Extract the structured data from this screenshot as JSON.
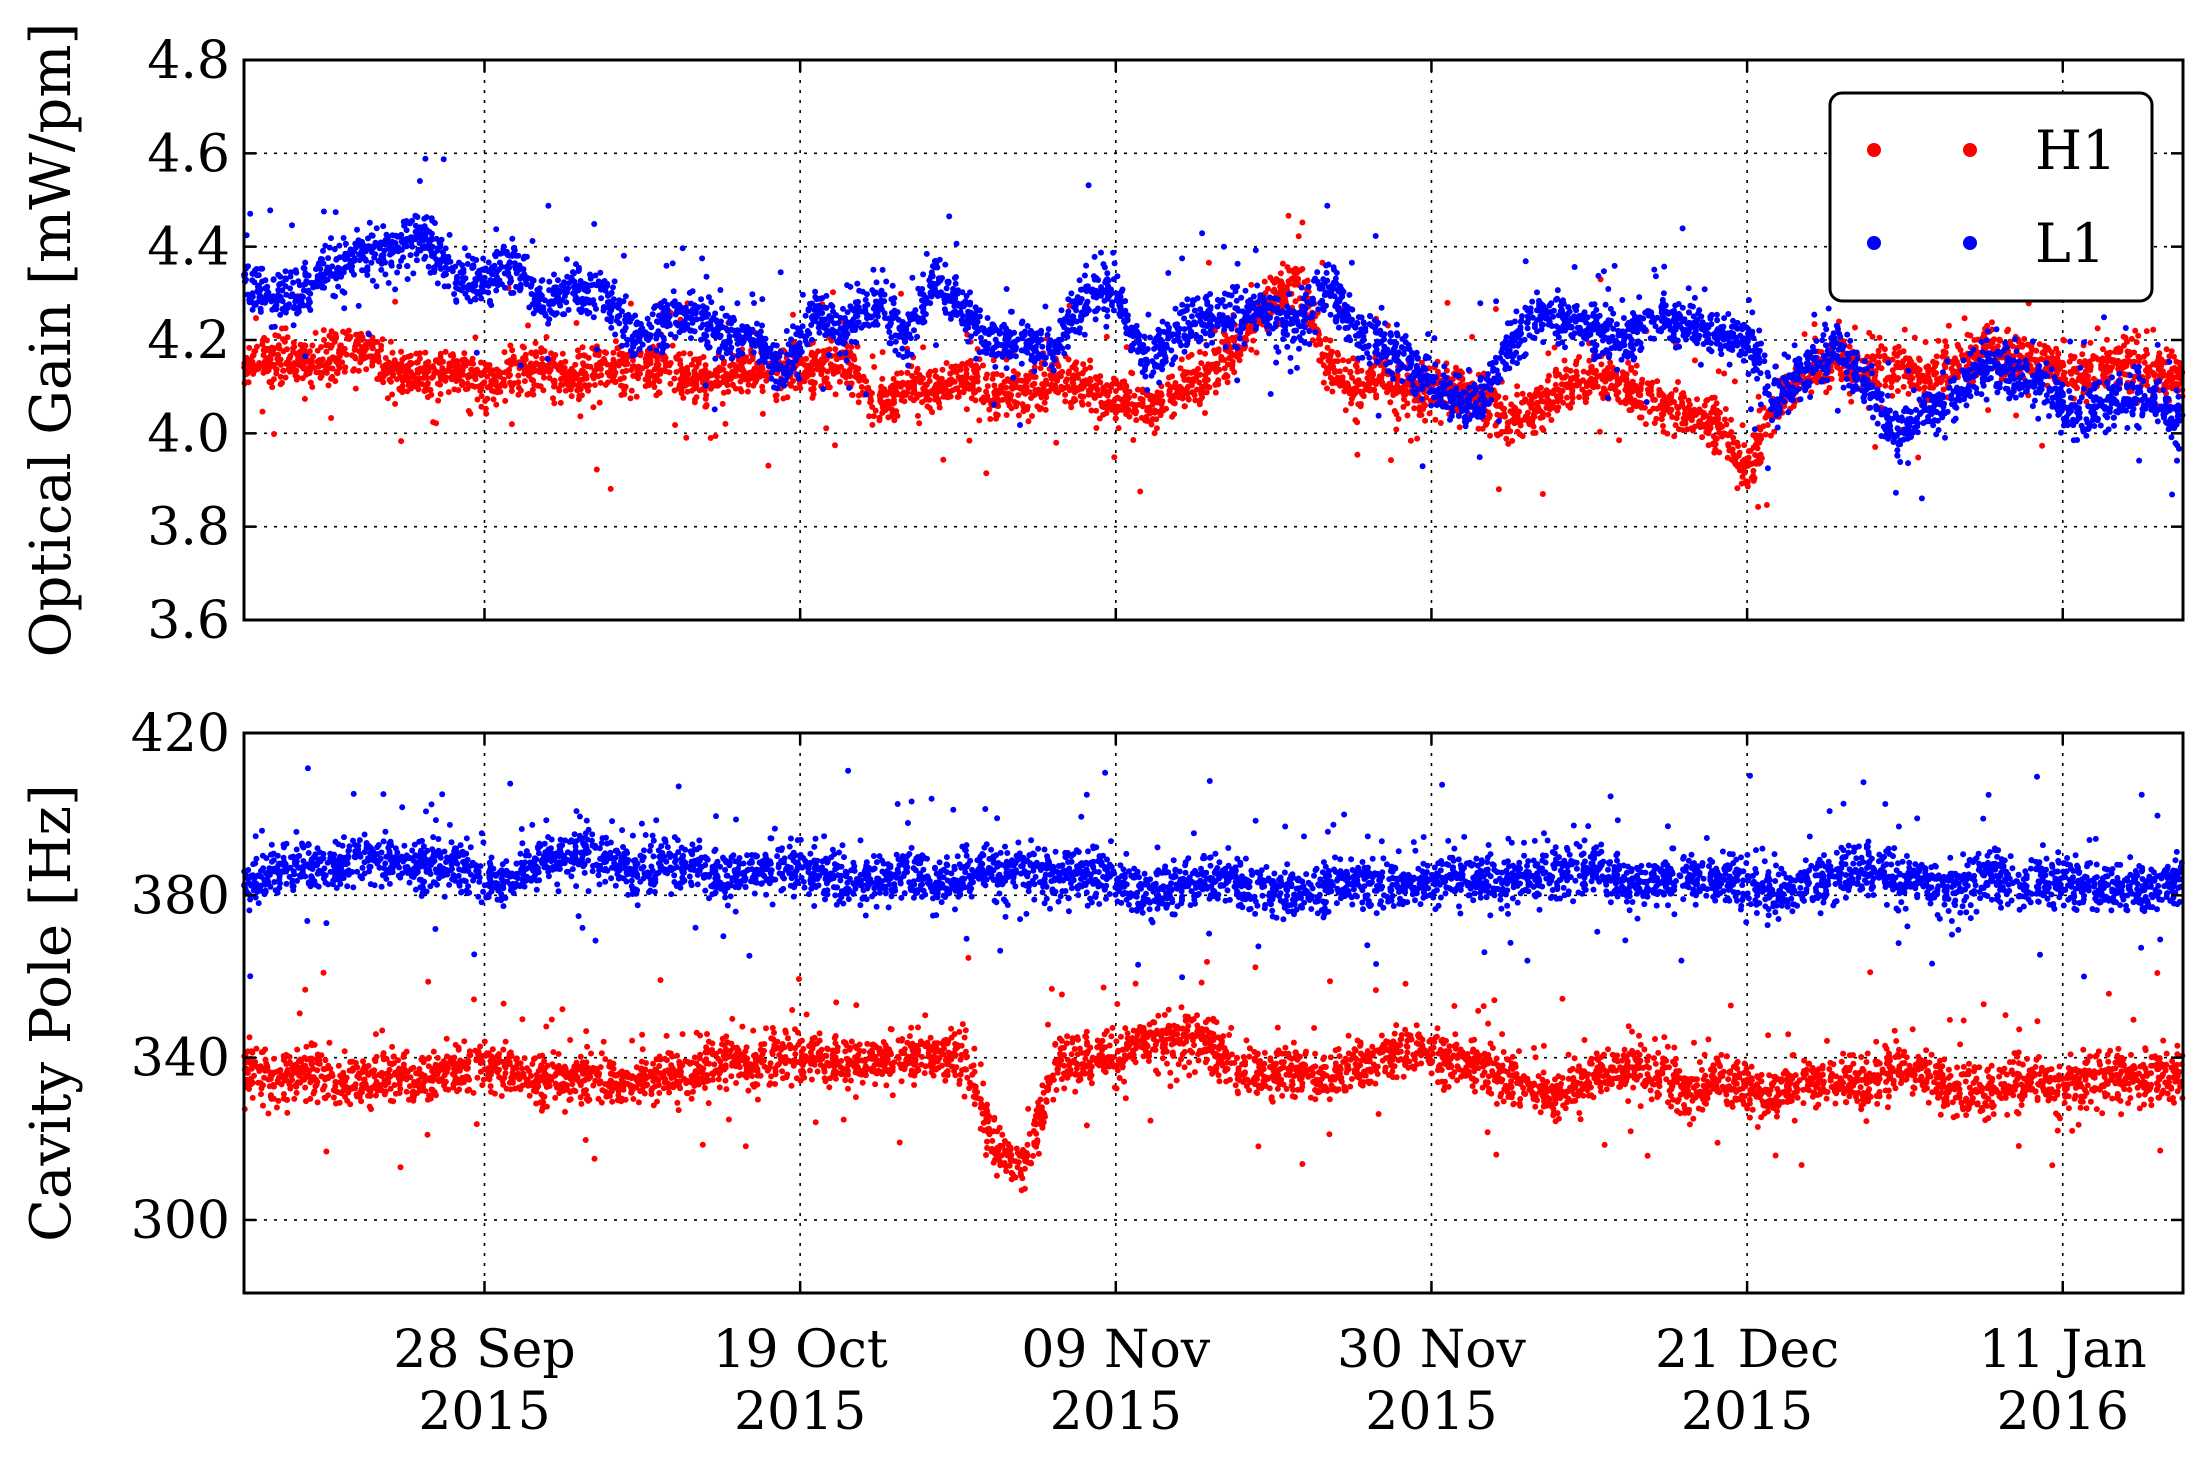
{
  "chart_data": {
    "type": "scatter",
    "x_axis": {
      "type": "date",
      "range": [
        "2015-09-12",
        "2016-01-19"
      ],
      "ticks": [
        {
          "date": "2015-09-28",
          "label_day": "28 Sep",
          "label_year": "2015"
        },
        {
          "date": "2015-10-19",
          "label_day": "19 Oct",
          "label_year": "2015"
        },
        {
          "date": "2015-11-09",
          "label_day": "09 Nov",
          "label_year": "2015"
        },
        {
          "date": "2015-11-30",
          "label_day": "30 Nov",
          "label_year": "2015"
        },
        {
          "date": "2015-12-21",
          "label_day": "21 Dec",
          "label_year": "2015"
        },
        {
          "date": "2016-01-11",
          "label_day": "11 Jan",
          "label_year": "2016"
        }
      ]
    },
    "legend": {
      "placement": "top-right",
      "entries": [
        {
          "label": "H1",
          "color": "#ff0000"
        },
        {
          "label": "L1",
          "color": "#0000ff"
        }
      ]
    },
    "panels": [
      {
        "id": "optical-gain",
        "ylabel": "Optical Gain [mW/pm]",
        "ylim": [
          3.6,
          4.8
        ],
        "yticks": [
          3.6,
          3.8,
          4.0,
          4.2,
          4.4,
          4.6,
          4.8
        ],
        "ytick_labels": [
          "3.6",
          "3.8",
          "4.0",
          "4.2",
          "4.4",
          "4.6",
          "4.8"
        ],
        "grid": true,
        "series": [
          {
            "name": "H1",
            "color": "#ff0000",
            "x": [
              0,
              2,
              4,
              6,
              8,
              10,
              12,
              14,
              16,
              18,
              20,
              22,
              24,
              26,
              28,
              30,
              32,
              34,
              36,
              38,
              40,
              42,
              44,
              46,
              48,
              50,
              52,
              54,
              56,
              58,
              60,
              62,
              64,
              66,
              68,
              70,
              72,
              74,
              76,
              78,
              80,
              82,
              84,
              86,
              88,
              90,
              92,
              94,
              96,
              98,
              100,
              102,
              104,
              106,
              108,
              110,
              112,
              114,
              116,
              118,
              120,
              122,
              124,
              126,
              128
            ],
            "y": [
              4.14,
              4.16,
              4.15,
              4.16,
              4.18,
              4.13,
              4.12,
              4.14,
              4.1,
              4.13,
              4.14,
              4.12,
              4.15,
              4.13,
              4.15,
              4.11,
              4.12,
              4.14,
              4.13,
              4.14,
              4.16,
              4.07,
              4.1,
              4.09,
              4.12,
              4.08,
              4.1,
              4.11,
              4.1,
              4.08,
              4.05,
              4.09,
              4.12,
              4.18,
              4.28,
              4.34,
              4.15,
              4.09,
              4.12,
              4.08,
              4.1,
              4.07,
              4.03,
              4.06,
              4.1,
              4.13,
              4.1,
              4.06,
              4.04,
              4.02,
              3.92,
              4.08,
              4.13,
              4.16,
              4.12,
              4.14,
              4.12,
              4.14,
              4.18,
              4.17,
              4.15,
              4.12,
              4.15,
              4.14,
              4.13
            ]
          },
          {
            "name": "L1",
            "color": "#0000ff",
            "x": [
              0,
              2,
              4,
              6,
              8,
              10,
              12,
              14,
              16,
              18,
              20,
              22,
              24,
              26,
              28,
              30,
              32,
              34,
              36,
              38,
              40,
              42,
              44,
              46,
              48,
              50,
              52,
              54,
              56,
              58,
              60,
              62,
              64,
              66,
              68,
              70,
              72,
              74,
              76,
              78,
              80,
              82,
              84,
              86,
              88,
              90,
              92,
              94,
              96,
              98,
              100,
              102,
              104,
              106,
              108,
              110,
              112,
              114,
              116,
              118,
              120,
              122,
              124,
              126,
              128
            ],
            "y": [
              4.33,
              4.28,
              4.3,
              4.36,
              4.38,
              4.4,
              4.41,
              4.34,
              4.33,
              4.36,
              4.28,
              4.31,
              4.3,
              4.2,
              4.24,
              4.25,
              4.22,
              4.21,
              4.13,
              4.26,
              4.22,
              4.28,
              4.21,
              4.32,
              4.27,
              4.19,
              4.2,
              4.18,
              4.29,
              4.31,
              4.15,
              4.22,
              4.24,
              4.25,
              4.26,
              4.23,
              4.31,
              4.22,
              4.19,
              4.14,
              4.08,
              4.06,
              4.18,
              4.25,
              4.24,
              4.22,
              4.2,
              4.27,
              4.23,
              4.21,
              4.2,
              4.06,
              4.15,
              4.18,
              4.1,
              4.0,
              4.05,
              4.08,
              4.15,
              4.12,
              4.1,
              4.04,
              4.06,
              4.08,
              4.04
            ]
          }
        ]
      },
      {
        "id": "cavity-pole",
        "ylabel": "Cavity Pole [Hz]",
        "ylim": [
          282,
          420
        ],
        "yticks": [
          300,
          340,
          380,
          420
        ],
        "ytick_labels": [
          "300",
          "340",
          "380",
          "420"
        ],
        "grid": true,
        "series": [
          {
            "name": "H1",
            "color": "#ff0000",
            "x": [
              0,
              2,
              4,
              6,
              8,
              10,
              12,
              14,
              16,
              18,
              20,
              22,
              24,
              26,
              28,
              30,
              32,
              34,
              36,
              38,
              40,
              42,
              44,
              46,
              48,
              50,
              52,
              54,
              56,
              58,
              60,
              62,
              64,
              66,
              68,
              70,
              72,
              74,
              76,
              78,
              80,
              82,
              84,
              86,
              88,
              90,
              92,
              94,
              96,
              98,
              100,
              102,
              104,
              106,
              108,
              110,
              112,
              114,
              116,
              118,
              120,
              122,
              124,
              126,
              128
            ],
            "y": [
              338,
              334,
              336,
              335,
              334,
              336,
              335,
              337,
              338,
              336,
              334,
              335,
              336,
              334,
              336,
              335,
              340,
              338,
              341,
              339,
              340,
              339,
              340,
              341,
              339,
              318,
              314,
              338,
              339,
              340,
              344,
              345,
              343,
              338,
              336,
              337,
              335,
              338,
              341,
              342,
              339,
              338,
              336,
              332,
              331,
              336,
              337,
              336,
              332,
              334,
              333,
              331,
              335,
              334,
              333,
              338,
              336,
              332,
              331,
              334,
              333,
              334,
              335,
              334,
              336
            ]
          },
          {
            "name": "L1",
            "color": "#0000ff",
            "x": [
              0,
              2,
              4,
              6,
              8,
              10,
              12,
              14,
              16,
              18,
              20,
              22,
              24,
              26,
              28,
              30,
              32,
              34,
              36,
              38,
              40,
              42,
              44,
              46,
              48,
              50,
              52,
              54,
              56,
              58,
              60,
              62,
              64,
              66,
              68,
              70,
              72,
              74,
              76,
              78,
              80,
              82,
              84,
              86,
              88,
              90,
              92,
              94,
              96,
              98,
              100,
              102,
              104,
              106,
              108,
              110,
              112,
              114,
              116,
              118,
              120,
              122,
              124,
              126,
              128
            ],
            "y": [
              382,
              386,
              388,
              387,
              389,
              388,
              387,
              388,
              385,
              384,
              389,
              390,
              389,
              386,
              388,
              387,
              385,
              386,
              387,
              386,
              383,
              384,
              387,
              381,
              385,
              386,
              386,
              385,
              384,
              385,
              380,
              382,
              385,
              383,
              381,
              380,
              382,
              383,
              384,
              383,
              384,
              384,
              383,
              385,
              386,
              386,
              384,
              383,
              385,
              384,
              382,
              381,
              383,
              385,
              386,
              384,
              383,
              382,
              384,
              383,
              384,
              383,
              382,
              381,
              384
            ]
          }
        ]
      }
    ]
  }
}
